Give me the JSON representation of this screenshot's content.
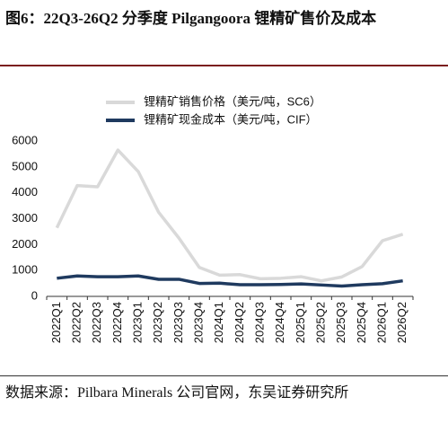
{
  "chart_data": {
    "type": "line",
    "title": "图6：22Q3-26Q2 分季度 Pilgangoora 锂精矿售价及成本",
    "source": "数据来源：Pilbara Minerals 公司官网，东吴证券研究所",
    "categories": [
      "2022Q1",
      "2022Q2",
      "2022Q3",
      "2022Q4",
      "2023Q1",
      "2023Q2",
      "2023Q3",
      "2023Q4",
      "2024Q1",
      "2024Q2",
      "2024Q3",
      "2024Q4",
      "2025Q1",
      "2025Q2",
      "2025Q3",
      "2025Q4",
      "2026Q1",
      "2026Q2"
    ],
    "series": [
      {
        "name": "锂精矿销售价格（美元/吨，SC6）",
        "color": "#d9d9d9",
        "values": [
          2650,
          4280,
          4230,
          5650,
          4820,
          3250,
          2250,
          1120,
          820,
          840,
          680,
          700,
          760,
          600,
          750,
          1150,
          2150,
          2400
        ]
      },
      {
        "name": "锂精矿现金成本（美元/吨，CIF）",
        "color": "#1f3a5f",
        "values": [
          700,
          790,
          760,
          760,
          790,
          660,
          660,
          500,
          510,
          450,
          450,
          460,
          480,
          440,
          400,
          450,
          490,
          600
        ]
      }
    ],
    "ylim": [
      0,
      6000
    ],
    "yticks": [
      0,
      1000,
      2000,
      3000,
      4000,
      5000,
      6000
    ]
  }
}
